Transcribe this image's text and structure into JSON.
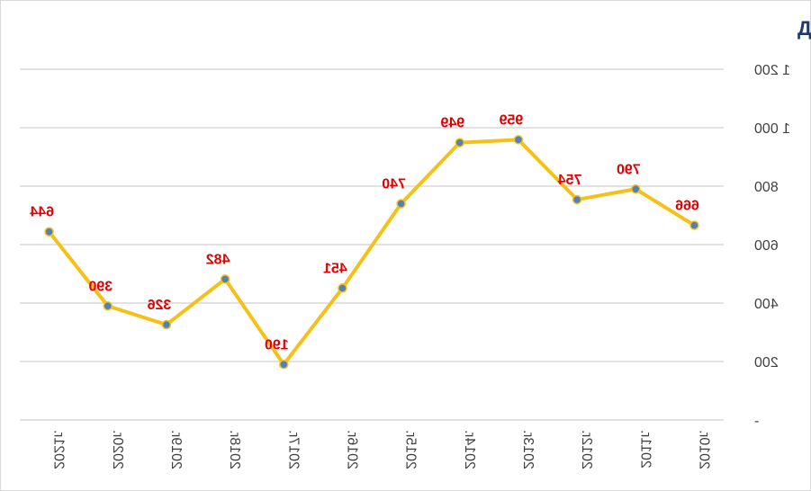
{
  "chart_data": {
    "type": "line",
    "title": "Динамика гос.заказов",
    "categories": [
      "2010г.",
      "2011г.",
      "2012г.",
      "2013г.",
      "2014г.",
      "2015г.",
      "2016г.",
      "2017г.",
      "2018г.",
      "2019г.",
      "2020г.",
      "2021г."
    ],
    "series": [
      {
        "values": [
          666,
          790,
          754,
          959,
          949,
          740,
          451,
          190,
          482,
          326,
          390,
          644
        ],
        "labels": [
          "666",
          "790",
          "754",
          "959",
          "949",
          "740",
          "451",
          "190",
          "482",
          "326",
          "390",
          "644"
        ]
      }
    ],
    "yticks": [
      "-",
      "200",
      "400",
      "600",
      "800",
      "1 000",
      "1 200"
    ],
    "ylim": [
      0,
      1200
    ],
    "grid": true,
    "mirrored": true,
    "colors": {
      "line": "#f5c018",
      "marker": "#4f81bd",
      "marker_edge": "#f5c018",
      "labels": "#e00000",
      "title": "#1f3864",
      "grid": "#d9d9d9"
    }
  }
}
